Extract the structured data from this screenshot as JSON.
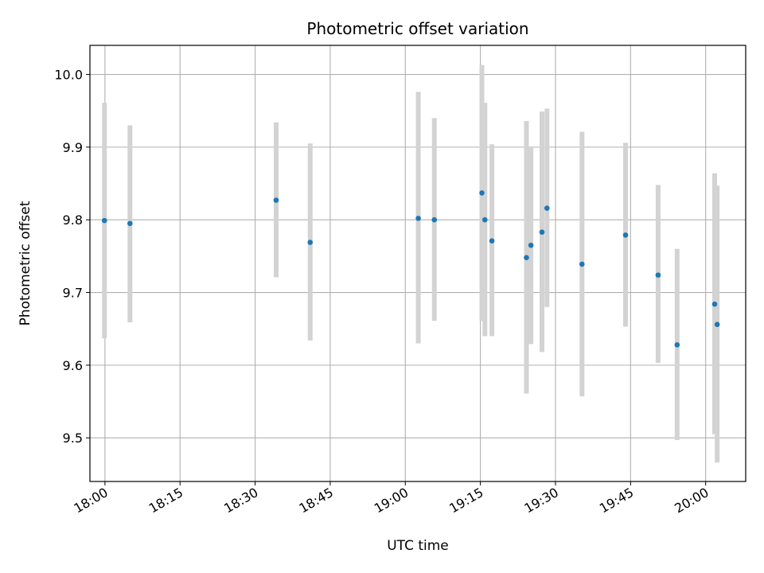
{
  "chart_data": {
    "type": "scatter",
    "title": "Photometric offset variation",
    "xlabel": "UTC time",
    "ylabel": "Photometric offset",
    "x_axis_type": "time",
    "xlim": [
      "17:57",
      "20:08"
    ],
    "ylim": [
      9.44,
      10.04
    ],
    "x_ticks": [
      "18:00",
      "18:15",
      "18:30",
      "18:45",
      "19:00",
      "19:15",
      "19:30",
      "19:45",
      "20:00"
    ],
    "y_ticks": [
      "9.5",
      "9.6",
      "9.7",
      "9.8",
      "9.9",
      "10.0"
    ],
    "grid": true,
    "point_color": "#1f77b4",
    "errorbar_color": "#d3d3d3",
    "points": [
      {
        "x": "17:59:54",
        "y": 9.799,
        "ylow": 9.637,
        "yhigh": 9.961
      },
      {
        "x": "18:05:00",
        "y": 9.795,
        "ylow": 9.659,
        "yhigh": 9.93
      },
      {
        "x": "18:34:12",
        "y": 9.827,
        "ylow": 9.721,
        "yhigh": 9.934
      },
      {
        "x": "18:41:00",
        "y": 9.769,
        "ylow": 9.634,
        "yhigh": 9.905
      },
      {
        "x": "19:02:36",
        "y": 9.802,
        "ylow": 9.63,
        "yhigh": 9.976
      },
      {
        "x": "19:05:48",
        "y": 9.8,
        "ylow": 9.661,
        "yhigh": 9.94
      },
      {
        "x": "19:15:18",
        "y": 9.837,
        "ylow": 9.661,
        "yhigh": 10.013
      },
      {
        "x": "19:15:54",
        "y": 9.8,
        "ylow": 9.64,
        "yhigh": 9.961
      },
      {
        "x": "19:17:18",
        "y": 9.771,
        "ylow": 9.64,
        "yhigh": 9.904
      },
      {
        "x": "19:24:12",
        "y": 9.748,
        "ylow": 9.561,
        "yhigh": 9.936
      },
      {
        "x": "19:25:06",
        "y": 9.765,
        "ylow": 9.629,
        "yhigh": 9.901
      },
      {
        "x": "19:27:18",
        "y": 9.783,
        "ylow": 9.618,
        "yhigh": 9.949
      },
      {
        "x": "19:28:18",
        "y": 9.816,
        "ylow": 9.68,
        "yhigh": 9.953
      },
      {
        "x": "19:35:18",
        "y": 9.739,
        "ylow": 9.557,
        "yhigh": 9.921
      },
      {
        "x": "19:44:00",
        "y": 9.779,
        "ylow": 9.653,
        "yhigh": 9.906
      },
      {
        "x": "19:50:30",
        "y": 9.724,
        "ylow": 9.603,
        "yhigh": 9.848
      },
      {
        "x": "19:54:18",
        "y": 9.628,
        "ylow": 9.497,
        "yhigh": 9.76
      },
      {
        "x": "20:01:48",
        "y": 9.684,
        "ylow": 9.505,
        "yhigh": 9.864
      },
      {
        "x": "20:02:18",
        "y": 9.656,
        "ylow": 9.466,
        "yhigh": 9.847
      }
    ]
  }
}
